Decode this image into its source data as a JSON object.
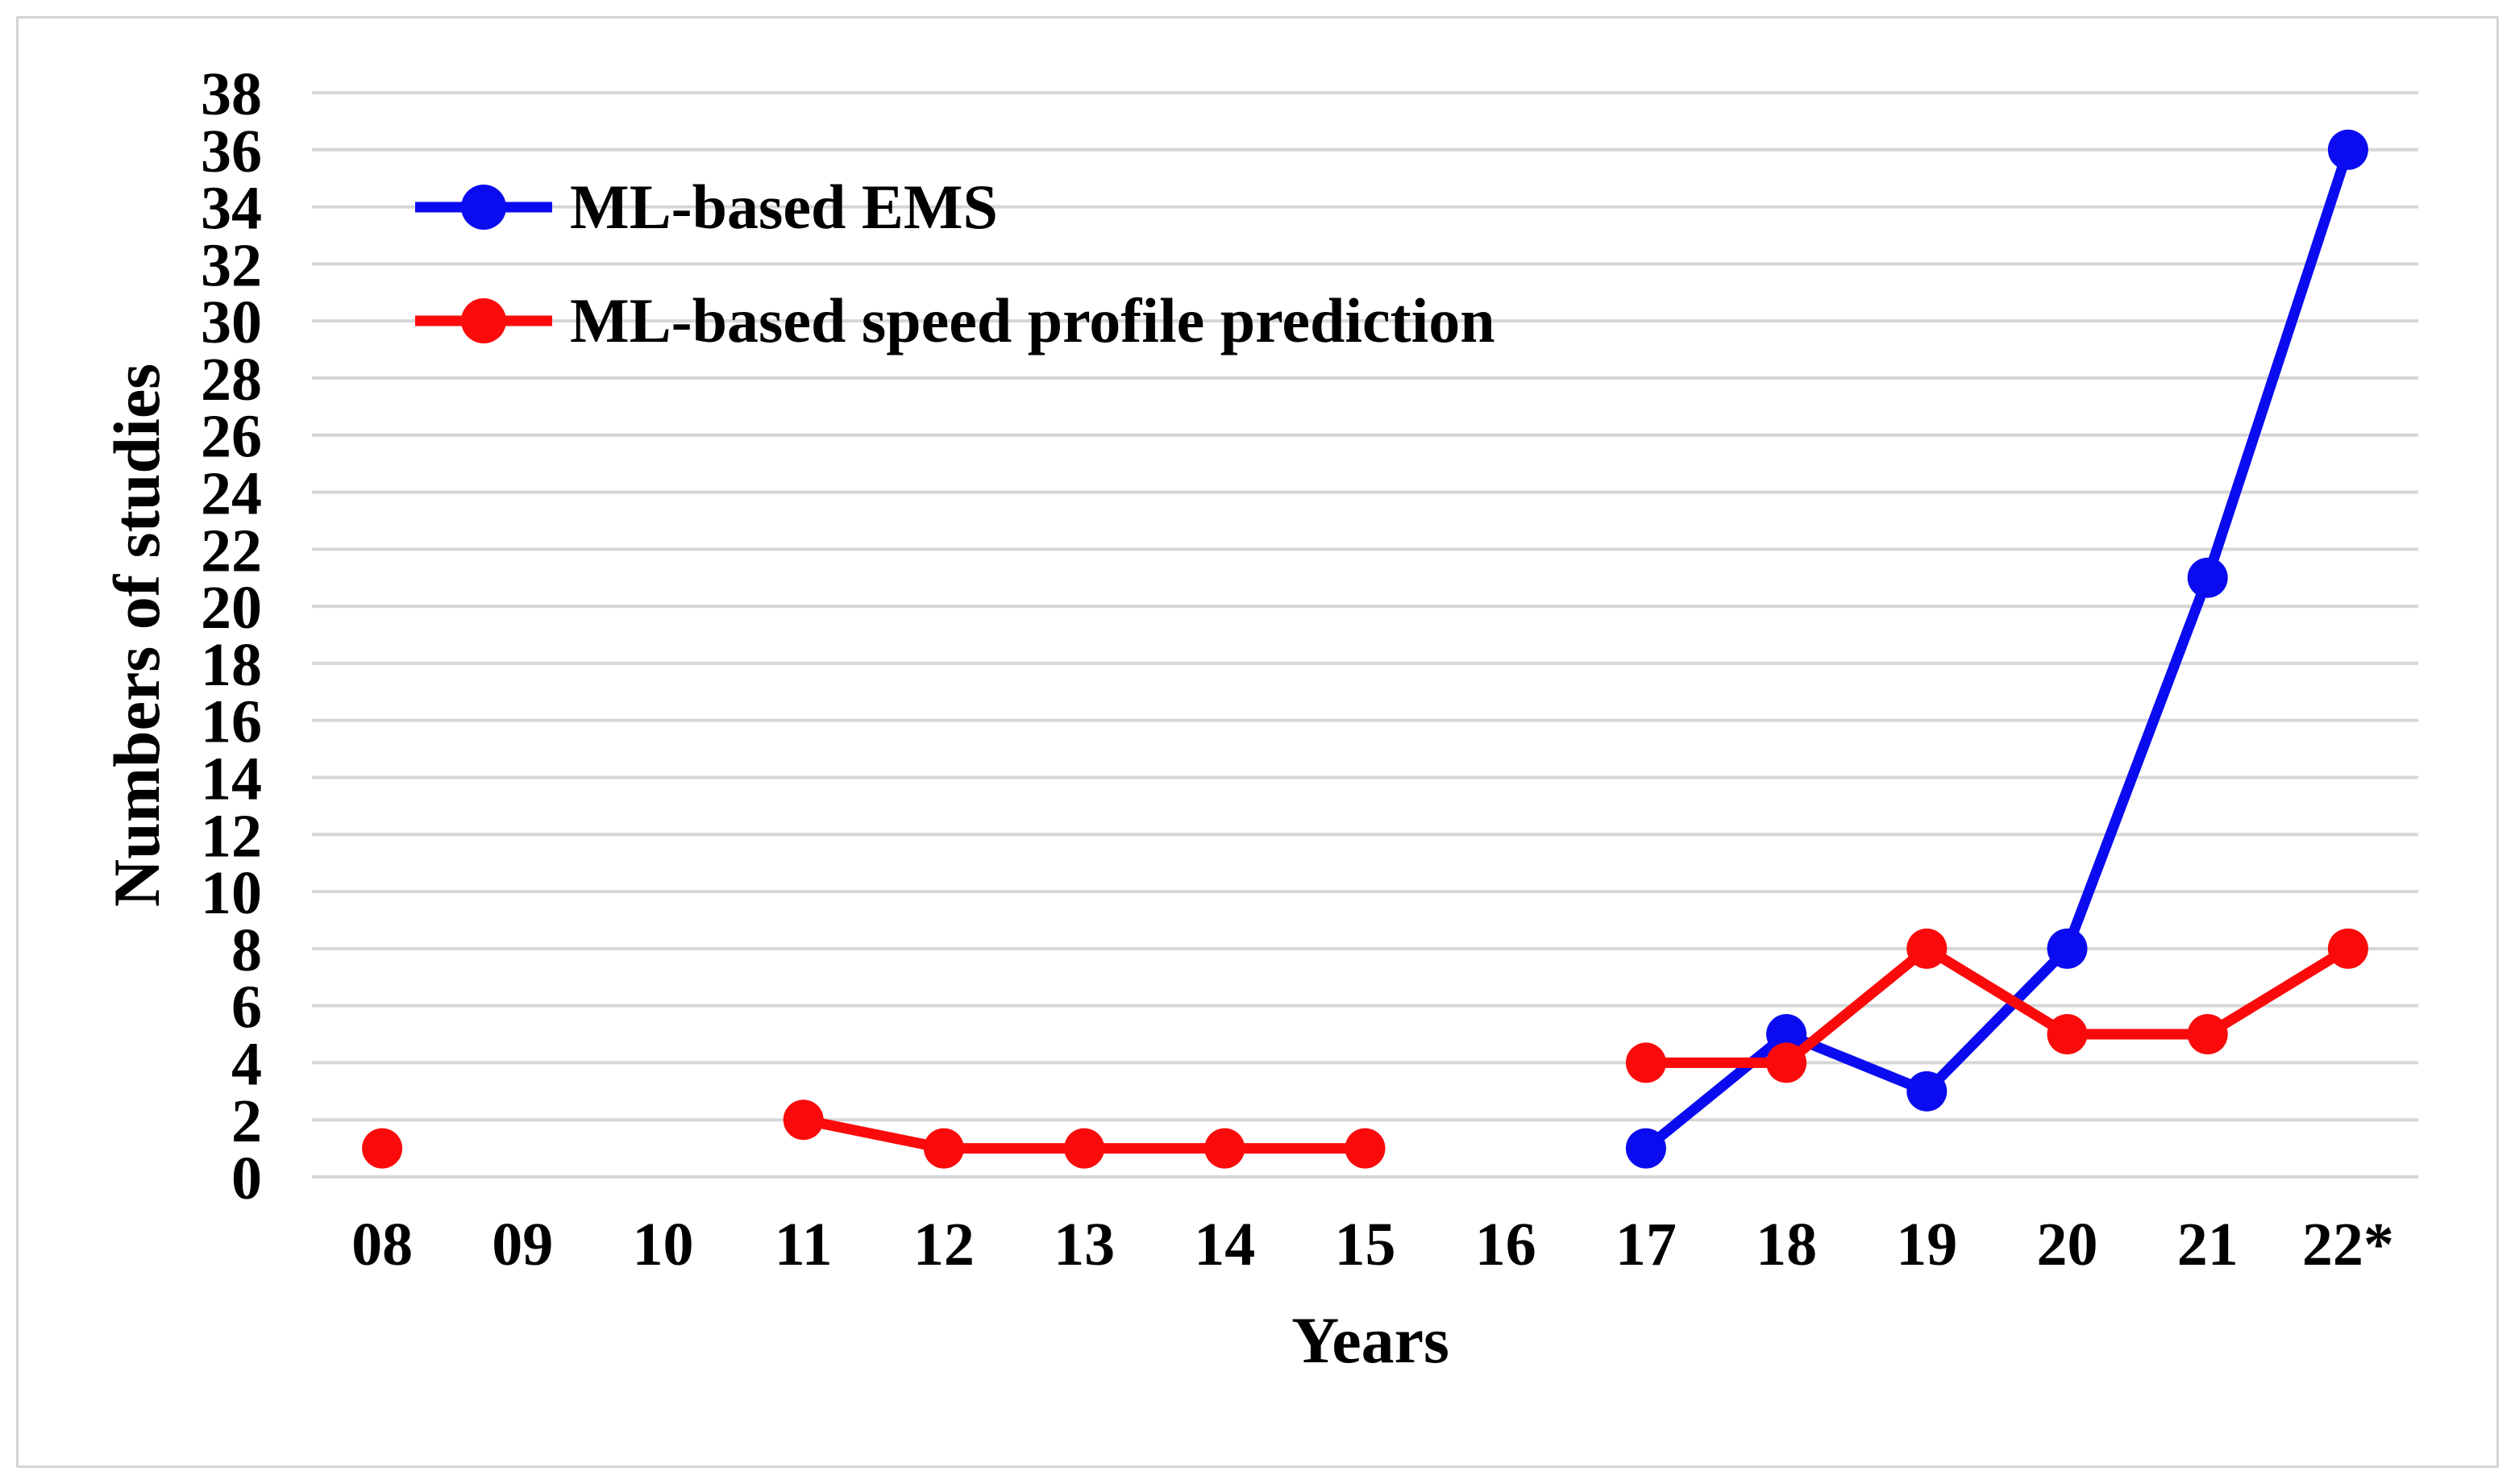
{
  "figure": {
    "background_color": "#ffffff",
    "border_color": "#d4d4d4",
    "text_color": "#000000",
    "gridline_color": "#d6d6d6"
  },
  "chart_data": {
    "type": "line",
    "title": "",
    "xlabel": "Years",
    "ylabel": "Numbers of studies",
    "categories": [
      "08",
      "09",
      "10",
      "11",
      "12",
      "13",
      "14",
      "15",
      "16",
      "17",
      "18",
      "19",
      "20",
      "21",
      "22*"
    ],
    "ylim": [
      0,
      38
    ],
    "ytick_step": 2,
    "grid": "horizontal",
    "legend_position": "top-left-inside",
    "marker": "circle",
    "series": [
      {
        "name": "ML-based EMS",
        "color": "#0b0bf0",
        "values": [
          null,
          null,
          null,
          null,
          null,
          null,
          null,
          null,
          null,
          1,
          5,
          3,
          8,
          21,
          36
        ]
      },
      {
        "name": "ML-based speed profile prediction",
        "color": "#fa0a0a",
        "values": [
          1,
          null,
          null,
          2,
          1,
          1,
          1,
          1,
          null,
          4,
          4,
          8,
          5,
          5,
          8
        ]
      }
    ]
  }
}
